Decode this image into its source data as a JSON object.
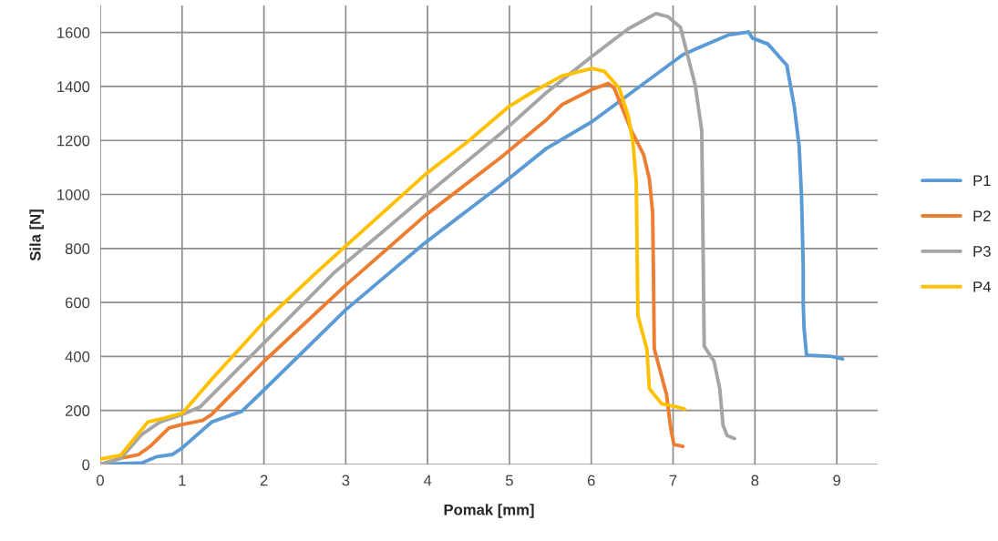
{
  "chart_data": {
    "type": "line",
    "xlabel": "Pomak [mm]",
    "ylabel": "Sila [N]",
    "xlim": [
      0,
      9.5
    ],
    "xticks": [
      0,
      1,
      2,
      3,
      4,
      5,
      6,
      7,
      8,
      9
    ],
    "ylim": [
      0,
      1700
    ],
    "yticks": [
      0,
      200,
      400,
      600,
      800,
      1000,
      1200,
      1400,
      1600
    ],
    "grid": true,
    "legend": "right",
    "marker": "none",
    "line_style": "solid",
    "series": [
      {
        "name": "P1",
        "color": "#5b9bd5",
        "x": [
          0,
          0.51,
          0.68,
          0.88,
          1.0,
          1.36,
          1.73,
          1.96,
          3.0,
          3.97,
          4.89,
          5.45,
          6.01,
          7.12,
          7.68,
          7.92,
          7.97,
          8.16,
          8.39,
          8.48,
          8.54,
          8.57,
          8.59,
          8.59,
          8.6,
          8.63,
          8.94,
          9.07
        ],
        "values": [
          0,
          6,
          28,
          37,
          61,
          157,
          197,
          264,
          573,
          821,
          1034,
          1170,
          1270,
          1518,
          1591,
          1602,
          1579,
          1557,
          1478,
          1327,
          1180,
          989,
          731,
          597,
          506,
          405,
          400,
          391
        ]
      },
      {
        "name": "P2",
        "color": "#ed7d31",
        "x": [
          0,
          0.25,
          0.47,
          0.61,
          0.84,
          1.0,
          1.25,
          1.36,
          2.0,
          3.0,
          3.97,
          4.89,
          5.45,
          5.64,
          6.01,
          6.21,
          6.28,
          6.49,
          6.64,
          6.71,
          6.75,
          6.76,
          6.77,
          6.83,
          6.92,
          6.97,
          7.01,
          7.12
        ],
        "values": [
          0,
          23,
          37,
          67,
          135,
          148,
          163,
          185,
          382,
          664,
          922,
          1136,
          1276,
          1332,
          1389,
          1411,
          1394,
          1237,
          1147,
          1057,
          933,
          708,
          428,
          360,
          259,
          135,
          74,
          67
        ]
      },
      {
        "name": "P3",
        "color": "#a5a5a5",
        "x": [
          0,
          0.25,
          0.51,
          0.73,
          1.0,
          1.22,
          2.0,
          2.85,
          3.97,
          4.89,
          5.45,
          6.01,
          6.45,
          6.79,
          6.94,
          7.09,
          7.27,
          7.35,
          7.37,
          7.38,
          7.5,
          7.57,
          7.61,
          7.66,
          7.75
        ],
        "values": [
          0,
          23,
          112,
          157,
          185,
          213,
          450,
          708,
          995,
          1225,
          1377,
          1512,
          1613,
          1670,
          1658,
          1619,
          1405,
          1237,
          708,
          438,
          382,
          281,
          146,
          107,
          96
        ]
      },
      {
        "name": "P4",
        "color": "#ffc000",
        "x": [
          0,
          0.25,
          0.58,
          0.77,
          1.0,
          1.36,
          2.0,
          2.63,
          3.97,
          4.52,
          5.0,
          5.27,
          5.64,
          6.01,
          6.16,
          6.34,
          6.45,
          6.51,
          6.55,
          6.57,
          6.68,
          6.71,
          6.86,
          7.05,
          7.14
        ],
        "values": [
          20,
          34,
          157,
          171,
          189,
          315,
          528,
          708,
          1074,
          1203,
          1327,
          1377,
          1439,
          1467,
          1456,
          1394,
          1293,
          1192,
          1046,
          551,
          427,
          281,
          225,
          213,
          205
        ]
      }
    ]
  }
}
